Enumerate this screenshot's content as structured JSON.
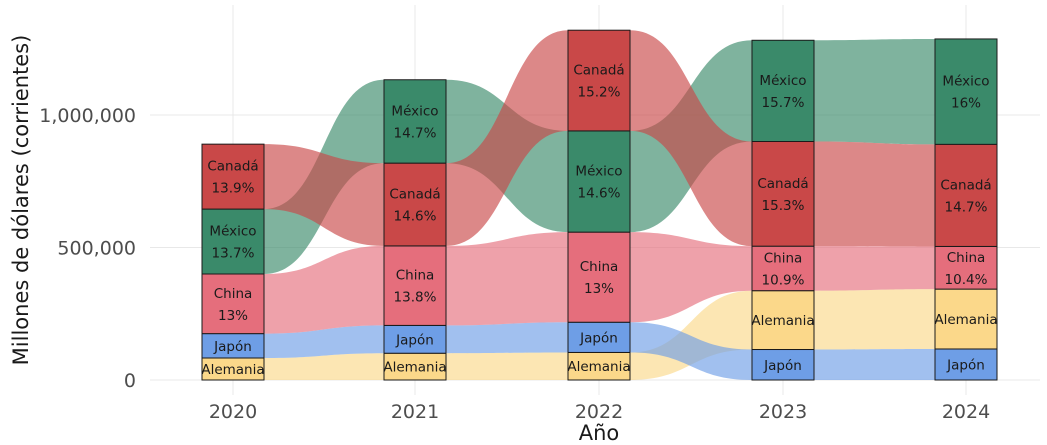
{
  "chart_data": {
    "type": "alluvial",
    "xlabel": "Año",
    "ylabel": "Millones de dólares (corrientes)",
    "ylim": [
      0,
      1400000
    ],
    "yticks": [
      0,
      500000,
      1000000
    ],
    "ytick_labels": [
      "0",
      "500,000",
      "1,000,000"
    ],
    "grid": true,
    "legend": "none",
    "categories": [
      "2020",
      "2021",
      "2022",
      "2023",
      "2024"
    ],
    "series": [
      {
        "name": "Alemania",
        "color": "#fbd88a",
        "values": [
          83000,
          101000,
          104000,
          222000,
          226000
        ],
        "labels": [
          "Alemania",
          "Alemania",
          "Alemania",
          "Alemania",
          "Alemania"
        ]
      },
      {
        "name": "Japón",
        "color": "#6e9ee6",
        "values": [
          92000,
          105000,
          114000,
          115000,
          117000
        ],
        "labels": [
          "Japón",
          "Japón",
          "Japón",
          "Japón",
          "Japón"
        ]
      },
      {
        "name": "China",
        "color": "#e56e7c",
        "values": [
          225000,
          300000,
          340000,
          168000,
          161000
        ],
        "labels": [
          "China\n13%",
          "China\n13.8%",
          "China\n13%",
          "China\n10.9%",
          "China\n10.4%"
        ]
      },
      {
        "name": "México",
        "color": "#3a8a6a",
        "values": [
          245000,
          315000,
          382000,
          382000,
          398000
        ],
        "labels": [
          "México\n13.7%",
          "México\n14.7%",
          "México\n14.6%",
          "México\n15.7%",
          "México\n16%"
        ]
      },
      {
        "name": "Canadá",
        "color": "#c94848",
        "values": [
          245000,
          312000,
          380000,
          395000,
          385000
        ],
        "labels": [
          "Canadá\n13.9%",
          "Canadá\n14.6%",
          "Canadá\n15.2%",
          "Canadá\n15.3%",
          "Canadá\n14.7%"
        ]
      }
    ],
    "stack_order": [
      [
        "Alemania",
        "Japón",
        "China",
        "México",
        "Canadá"
      ],
      [
        "Alemania",
        "Japón",
        "China",
        "Canadá",
        "México"
      ],
      [
        "Alemania",
        "Japón",
        "China",
        "México",
        "Canadá"
      ],
      [
        "Japón",
        "Alemania",
        "China",
        "Canadá",
        "México"
      ],
      [
        "Japón",
        "Alemania",
        "China",
        "Canadá",
        "México"
      ]
    ]
  }
}
